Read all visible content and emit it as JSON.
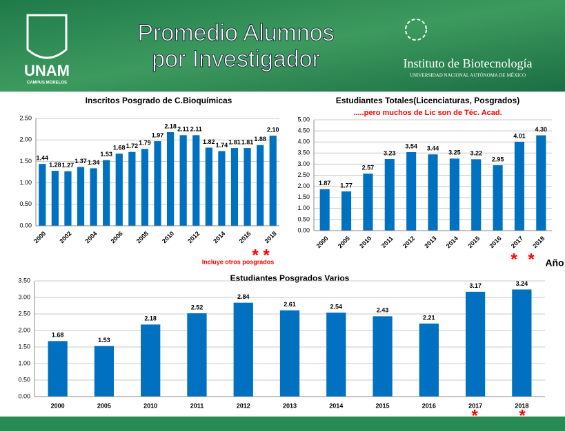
{
  "header": {
    "title_line1": "Promedio Alumnos",
    "title_line2": "por Investigador",
    "logo_left": "UNAM",
    "logo_left_sub": "CAMPUS MORELOS",
    "institute": "Instituto de Biotecnología",
    "institute_sub": "UNIVERSIDAD NACIONAL AUTÓNOMA DE MÉXICO"
  },
  "chart_data": [
    {
      "type": "bar",
      "title": "Inscritos Posgrado de C.Bioquímicas",
      "categories": [
        "2000",
        null,
        "2002",
        null,
        "2004",
        null,
        "2006",
        null,
        "2008",
        null,
        "2010",
        null,
        "2012",
        null,
        "2014",
        null,
        "2016",
        null,
        "2018"
      ],
      "values": [
        1.44,
        1.28,
        1.27,
        1.37,
        1.34,
        1.53,
        1.68,
        1.72,
        1.79,
        1.97,
        2.18,
        2.11,
        2.11,
        1.82,
        1.74,
        1.81,
        1.81,
        1.88,
        2.1
      ],
      "value_labels": [
        "1.44",
        "1.28",
        "1.27",
        "1.37",
        "1.34",
        "1.53",
        "1.68",
        "1.72",
        "1.79",
        "1.97",
        "2.18",
        "2.11",
        "2.11",
        "1.82",
        "1.74",
        "1.81",
        "1.81",
        "1.88",
        "2.10"
      ],
      "color": "#0070c0",
      "ylim": [
        0,
        2.5
      ],
      "yticks": [
        {
          "value": 0,
          "label": "0.00"
        },
        {
          "value": 0.5,
          "label": "0.50"
        },
        {
          "value": 1,
          "label": "1.00"
        },
        {
          "value": 1.5,
          "label": "1.50"
        },
        {
          "value": 2,
          "label": "2.00"
        },
        {
          "value": 2.5,
          "label": "2.50"
        }
      ],
      "grid": true,
      "notes": [
        "*",
        "*",
        "Incluye otros posgrados"
      ]
    },
    {
      "type": "bar",
      "title": "Estudiantes Totales(Licenciaturas, Posgrados)",
      "subtitle": ".....pero muchos de Lic son de Téc. Acad.",
      "categories": [
        "2000",
        "2005",
        "2010",
        "2011",
        "2012",
        "2013",
        "2014",
        "2015",
        "2016",
        "2017",
        "2018"
      ],
      "values": [
        1.87,
        1.77,
        2.57,
        3.23,
        3.54,
        3.44,
        3.25,
        3.22,
        2.95,
        4.01,
        4.3
      ],
      "value_labels": [
        "1.87",
        "1.77",
        "2.57",
        "3.23",
        "3.54",
        "3.44",
        "3.25",
        "3.22",
        "2.95",
        "4.01",
        "4.30"
      ],
      "color": "#0070c0",
      "ylim": [
        0,
        5
      ],
      "yticks": [
        {
          "value": 0,
          "label": "0.00"
        },
        {
          "value": 0.5,
          "label": "0.50"
        },
        {
          "value": 1,
          "label": "1.00"
        },
        {
          "value": 1.5,
          "label": "1.50"
        },
        {
          "value": 2,
          "label": "2.00"
        },
        {
          "value": 2.5,
          "label": "2.50"
        },
        {
          "value": 3,
          "label": "3.00"
        },
        {
          "value": 3.5,
          "label": "3.50"
        },
        {
          "value": 4,
          "label": "4.00"
        },
        {
          "value": 4.5,
          "label": "4.50"
        },
        {
          "value": 5,
          "label": "5.00"
        }
      ],
      "grid": true,
      "notes": [
        "*",
        "*",
        "Año"
      ]
    },
    {
      "type": "bar",
      "title": "Estudiantes Posgrados Varios",
      "categories": [
        "2000",
        "2005",
        "2010",
        "2011",
        "2012",
        "2013",
        "2014",
        "2015",
        "2016",
        "2017",
        "2018"
      ],
      "values": [
        1.68,
        1.53,
        2.18,
        2.52,
        2.84,
        2.61,
        2.54,
        2.43,
        2.21,
        3.17,
        3.24
      ],
      "value_labels": [
        "1.68",
        "1.53",
        "2.18",
        "2.52",
        "2.84",
        "2.61",
        "2.54",
        "2.43",
        "2.21",
        "3.17",
        "3.24"
      ],
      "color": "#0070c0",
      "ylim": [
        0,
        3.5
      ],
      "yticks": [
        {
          "value": 0,
          "label": "0.00"
        },
        {
          "value": 0.5,
          "label": "0.50"
        },
        {
          "value": 1,
          "label": "1.00"
        },
        {
          "value": 1.5,
          "label": "1.50"
        },
        {
          "value": 2,
          "label": "2.00"
        },
        {
          "value": 2.5,
          "label": "2.50"
        },
        {
          "value": 3,
          "label": "3.00"
        },
        {
          "value": 3.5,
          "label": "3.50"
        }
      ],
      "grid": true,
      "notes": [
        "*",
        "*"
      ]
    }
  ]
}
